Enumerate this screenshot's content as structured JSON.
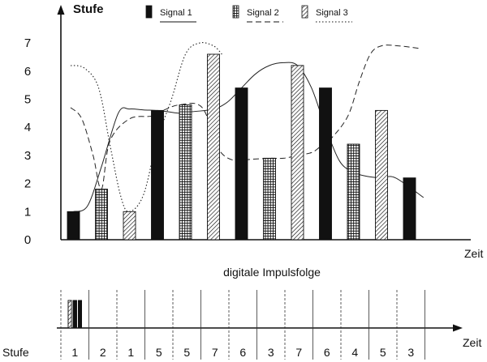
{
  "chart_data": {
    "type": "bar",
    "ylabel": "Stufe",
    "xlabel": "Zeit",
    "ylim": [
      0,
      7
    ],
    "yticks": [
      0,
      1,
      2,
      3,
      4,
      5,
      6,
      7
    ],
    "legend_position": "top-center",
    "grid": false,
    "series": [
      {
        "name": "Signal 1",
        "pattern": "solid",
        "line_style": "solid"
      },
      {
        "name": "Signal 2",
        "pattern": "grid",
        "line_style": "dashed"
      },
      {
        "name": "Signal 3",
        "pattern": "hatched",
        "line_style": "dotted"
      }
    ],
    "samples": [
      {
        "series": 0,
        "value": 1
      },
      {
        "series": 1,
        "value": 1.8
      },
      {
        "series": 2,
        "value": 1
      },
      {
        "series": 0,
        "value": 4.6
      },
      {
        "series": 1,
        "value": 4.8
      },
      {
        "series": 2,
        "value": 6.6
      },
      {
        "series": 0,
        "value": 5.4
      },
      {
        "series": 1,
        "value": 2.9
      },
      {
        "series": 2,
        "value": 6.2
      },
      {
        "series": 0,
        "value": 5.4
      },
      {
        "series": 1,
        "value": 3.4
      },
      {
        "series": 2,
        "value": 4.6
      },
      {
        "series": 0,
        "value": 2.2
      }
    ],
    "curves": [
      {
        "series": 0,
        "t": [
          0,
          0.5,
          1,
          1.6,
          2,
          2.5,
          3,
          3.4,
          3.8,
          4.2,
          5,
          5.5,
          6,
          6.5,
          7,
          7.5,
          8,
          8.5,
          9,
          9.5,
          10,
          10.5,
          11,
          11.5,
          12.5
        ],
        "y": [
          1,
          1.2,
          2.6,
          4.5,
          4.65,
          4.62,
          4.6,
          4.55,
          4.5,
          4.55,
          4.65,
          4.9,
          5.4,
          5.9,
          6.2,
          6.3,
          6.2,
          5.4,
          4,
          2.8,
          2.4,
          2.25,
          2.2,
          2.2,
          1.5
        ]
      },
      {
        "series": 1,
        "t": [
          -0.1,
          0.3,
          0.7,
          1,
          1.3,
          2,
          2.8,
          3.2,
          3.8,
          4.6,
          5.2,
          5.8,
          6.2,
          7,
          7.5,
          8,
          8.5,
          8.8,
          9.2,
          9.8,
          10.2,
          10.6,
          11,
          11.6,
          12.4
        ],
        "y": [
          4.7,
          4.3,
          3,
          1.8,
          3.5,
          4.3,
          4.4,
          4.6,
          4.8,
          4.7,
          3.2,
          2.8,
          2.85,
          2.9,
          2.9,
          3,
          3.1,
          3.3,
          3.6,
          4.4,
          5.6,
          6.6,
          6.9,
          6.9,
          6.8
        ]
      },
      {
        "series": 2,
        "t": [
          -0.1,
          0.4,
          0.9,
          1.3,
          1.7,
          2,
          2.5,
          3,
          3.5,
          4,
          4.5,
          5,
          5.3
        ],
        "y": [
          6.2,
          6.1,
          5.4,
          3.4,
          1.5,
          1,
          1.6,
          3.6,
          5,
          6.6,
          7,
          6.9,
          6.6
        ]
      }
    ],
    "pulse_chart": {
      "title": "digitale Impulsfolge",
      "xlabel": "Zeit",
      "row_label": "Stufe",
      "levels": [
        1,
        2,
        1,
        5,
        5,
        7,
        6,
        3,
        7,
        6,
        4,
        5,
        3
      ],
      "slot_series": [
        0,
        1,
        2,
        0,
        1,
        2,
        0,
        1,
        2,
        0,
        1,
        2,
        0
      ],
      "pulses": [
        [
          0,
          0,
          0
        ],
        [
          0,
          1,
          0
        ],
        [
          0,
          0,
          0
        ],
        [
          1,
          0,
          1
        ],
        [
          1,
          0,
          1
        ],
        [
          1,
          1,
          1
        ],
        [
          1,
          1,
          0
        ],
        [
          0,
          1,
          1
        ],
        [
          1,
          1,
          1
        ],
        [
          1,
          1,
          0
        ],
        [
          0,
          0,
          1
        ],
        [
          1,
          0,
          1
        ],
        [
          0,
          1,
          1
        ]
      ]
    }
  }
}
